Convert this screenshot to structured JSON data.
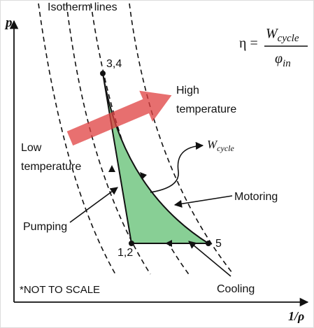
{
  "axes": {
    "y_label": "p",
    "x_label": "1/ρ"
  },
  "title": "Isotherm lines",
  "formula": {
    "lhs": "η =",
    "numerator": {
      "symbol": "W",
      "subscript": "cycle"
    },
    "denominator": {
      "symbol": "φ",
      "subscript": "in"
    }
  },
  "points": [
    {
      "label": "3,4"
    },
    {
      "label": "1,2"
    },
    {
      "label": "5"
    }
  ],
  "labels": {
    "high": [
      "High",
      "temperature"
    ],
    "low": [
      "Low",
      "temperature"
    ],
    "work": {
      "symbol": "W",
      "subscript": "cycle"
    },
    "motoring": "Motoring",
    "pumping": "Pumping",
    "cooling": "Cooling",
    "note": "*NOT TO SCALE"
  }
}
